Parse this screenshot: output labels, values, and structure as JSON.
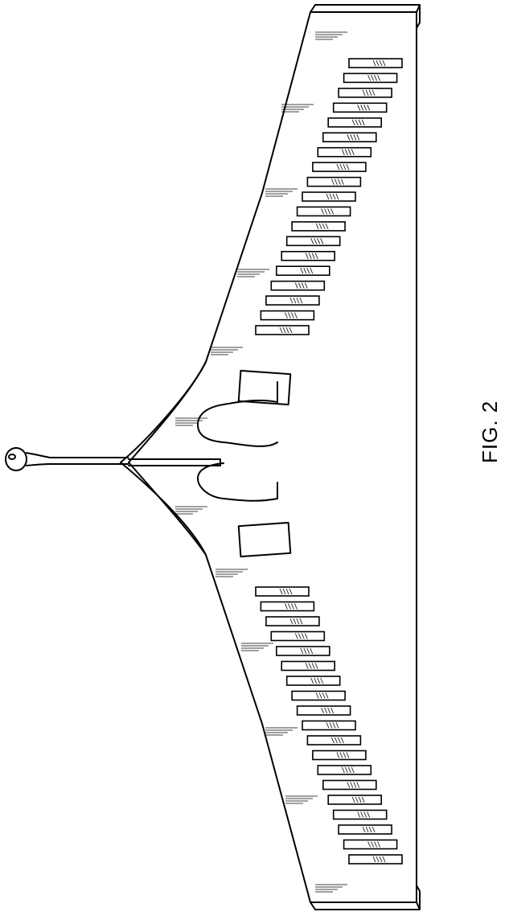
{
  "figure": {
    "label": "FIG. 2"
  },
  "parts": {
    "slot_count_per_wing": 19,
    "outer_notch_count_per_wing": 1,
    "center_cutout_count": 2,
    "center_slit_count": 1,
    "handle_count": 1
  },
  "style": {
    "line_color": "#000000",
    "background": "#ffffff"
  }
}
